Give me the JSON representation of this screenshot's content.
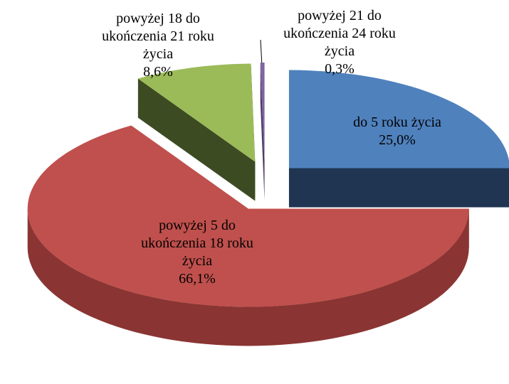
{
  "chart_data": {
    "type": "pie",
    "three_d": true,
    "exploded": true,
    "categories": [
      "do 5 roku życia",
      "powyżej 5 do ukończenia 18 roku życia",
      "powyżej 18 do ukończenia 21 roku życia",
      "powyżej 21 do ukończenia 24 roku życia"
    ],
    "values": [
      25.0,
      66.1,
      8.6,
      0.3
    ],
    "value_labels": [
      "25,0%",
      "66,1%",
      "8,6%",
      "0,3%"
    ],
    "colors": [
      "#4f81bd",
      "#c0504d",
      "#9bbb59",
      "#8064a2"
    ],
    "side_colors": [
      "#1f3552",
      "#8a3533",
      "#3d4b22",
      "#4e3b66"
    ]
  }
}
